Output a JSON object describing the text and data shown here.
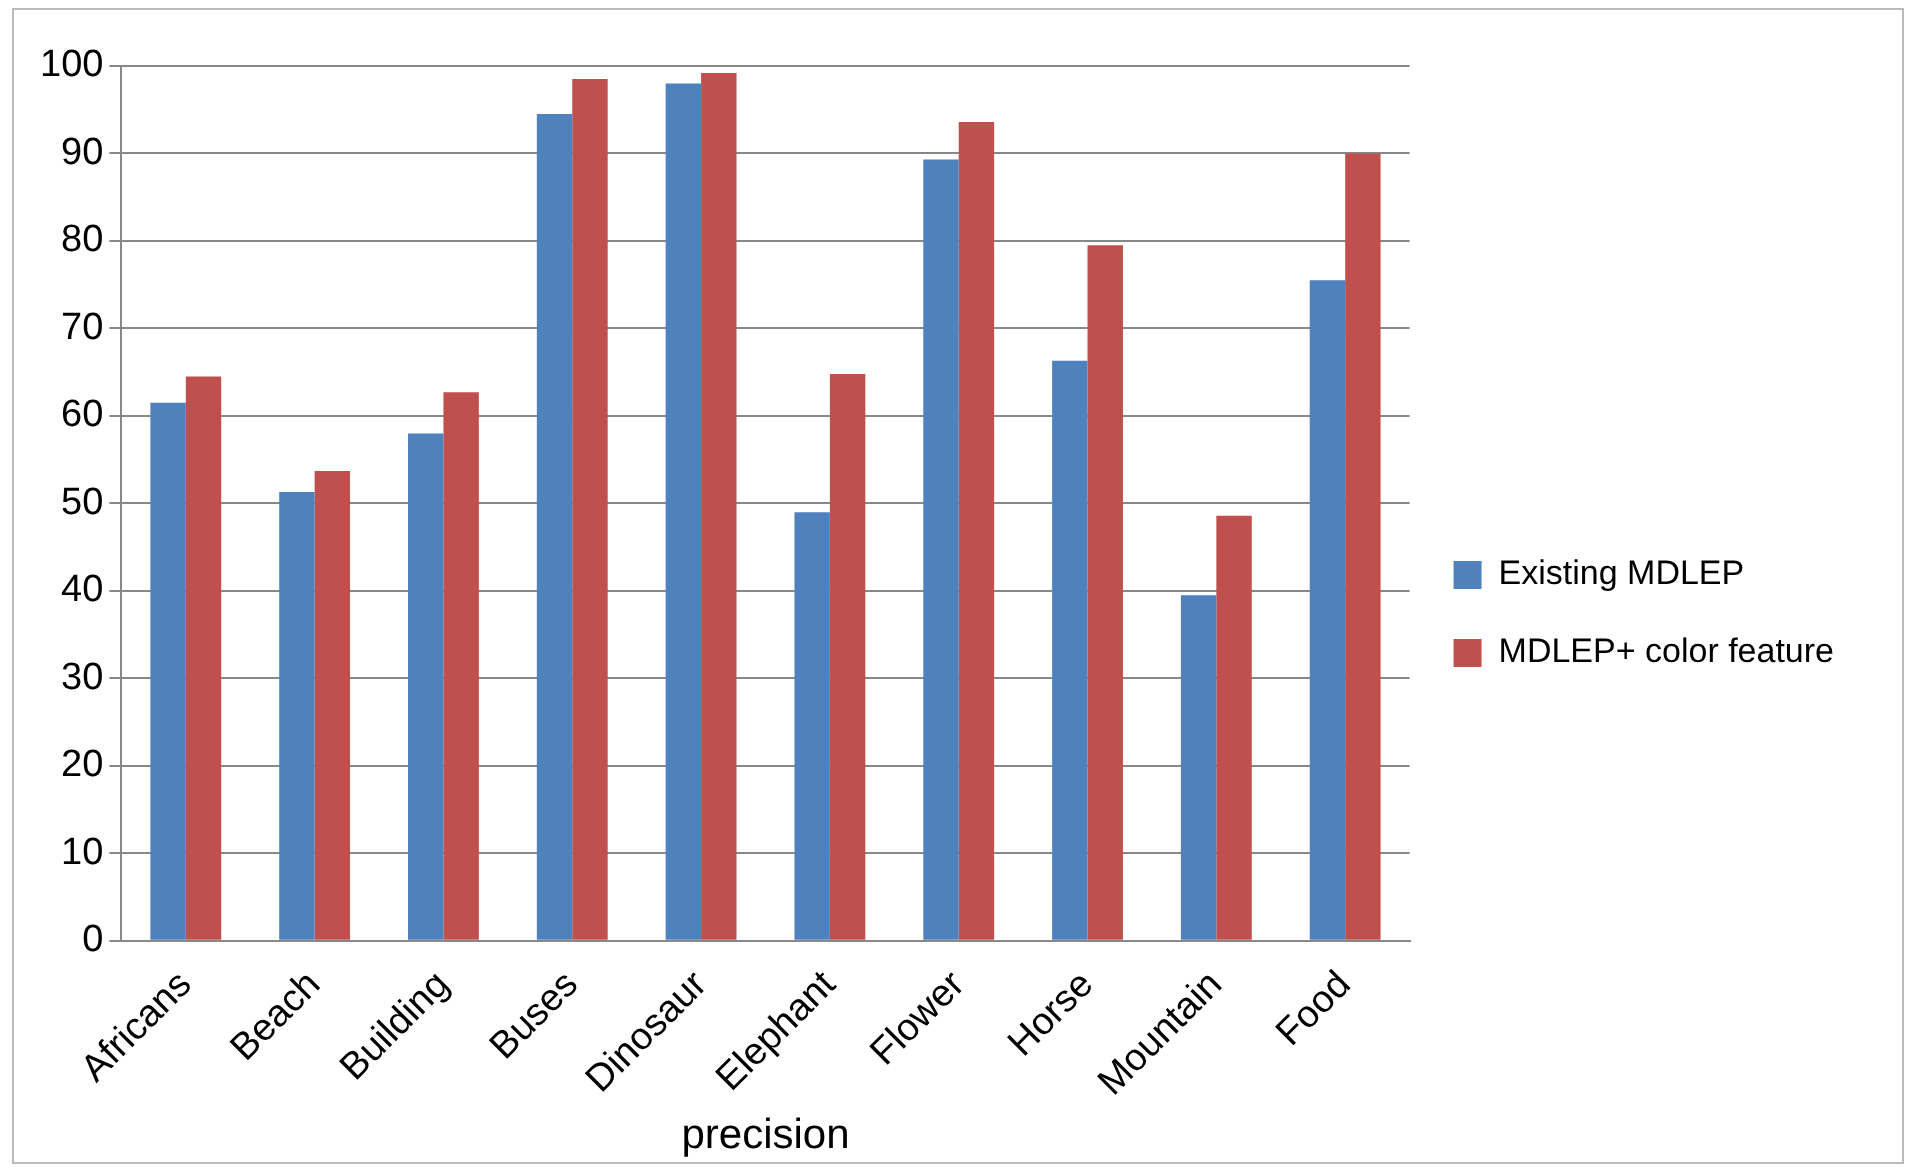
{
  "chart_data": {
    "type": "bar",
    "xlabel": "precision",
    "categories": [
      "Africans",
      "Beach",
      "Building",
      "Buses",
      "Dinosaur",
      "Elephant",
      "Flower",
      "Horse",
      "Mountain",
      "Food"
    ],
    "series": [
      {
        "name": "Existing MDLEP",
        "color": "#4f81bd",
        "values": [
          61.5,
          51.3,
          58,
          94.5,
          98,
          49,
          89.3,
          66.3,
          39.5,
          75.5
        ]
      },
      {
        "name": "MDLEP+ color feature",
        "color": "#c0504d",
        "values": [
          64.5,
          53.7,
          62.7,
          98.5,
          99.2,
          64.8,
          93.6,
          79.5,
          48.6,
          90
        ]
      }
    ],
    "ylim": [
      0,
      100
    ],
    "yticks": [
      0,
      10,
      20,
      30,
      40,
      50,
      60,
      70,
      80,
      90,
      100
    ],
    "grid": "y",
    "legend": "right"
  }
}
